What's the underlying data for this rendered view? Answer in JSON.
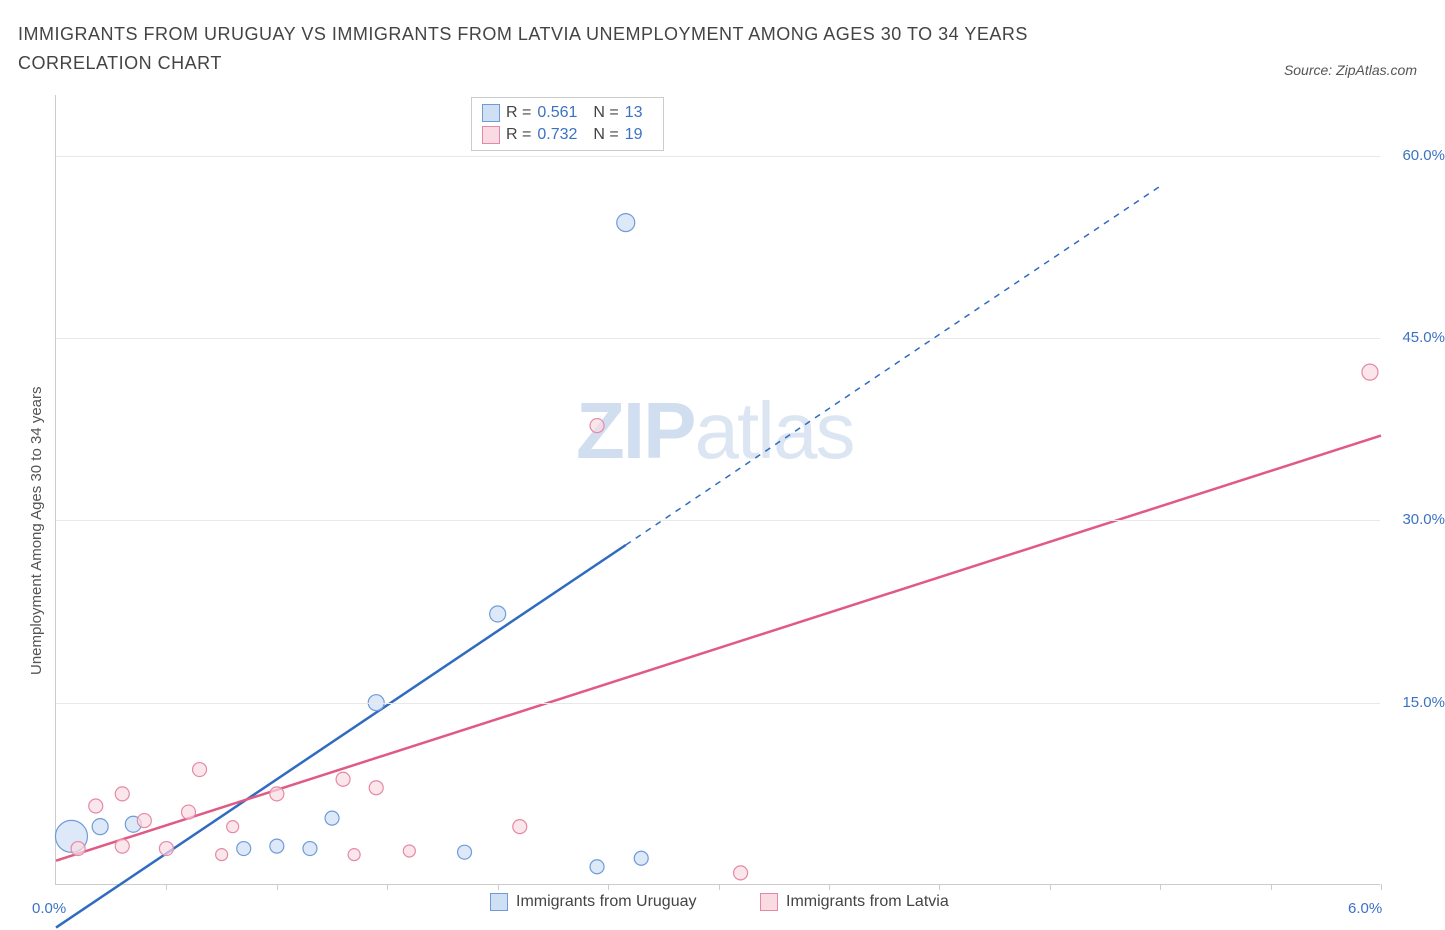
{
  "title": "IMMIGRANTS FROM URUGUAY VS IMMIGRANTS FROM LATVIA UNEMPLOYMENT AMONG AGES 30 TO 34 YEARS CORRELATION CHART",
  "source": "Source: ZipAtlas.com",
  "watermark_bold": "ZIP",
  "watermark_light": "atlas",
  "y_axis_label": "Unemployment Among Ages 30 to 34 years",
  "chart": {
    "type": "scatter-with-trend",
    "background_color": "#ffffff",
    "grid_color": "#e8e8e8",
    "axis_color": "#cccccc",
    "tick_label_color": "#3b72c4",
    "xlim": [
      0.0,
      6.0
    ],
    "ylim": [
      0.0,
      65.0
    ],
    "y_ticks": [
      15.0,
      30.0,
      45.0,
      60.0
    ],
    "y_tick_labels": [
      "15.0%",
      "30.0%",
      "45.0%",
      "60.0%"
    ],
    "x_tick_positions": [
      0.5,
      1.0,
      1.5,
      2.0,
      2.5,
      3.0,
      3.5,
      4.0,
      4.5,
      5.0,
      5.5,
      6.0
    ],
    "x_origin_label": "0.0%",
    "x_max_label": "6.0%",
    "series": [
      {
        "id": "uruguay",
        "label": "Immigrants from Uruguay",
        "color_fill": "#cfe0f5",
        "color_stroke": "#6f9bd8",
        "trend_color": "#2f6bc0",
        "trend_width": 2.5,
        "trend_solid_until_x": 2.58,
        "trend_y_intercept": -3.5,
        "trend_slope": 12.2,
        "trend_x_end": 5.0,
        "R": "0.561",
        "N": "13",
        "points": [
          {
            "x": 0.07,
            "y": 4.0,
            "r": 16
          },
          {
            "x": 0.2,
            "y": 4.8,
            "r": 8
          },
          {
            "x": 0.35,
            "y": 5.0,
            "r": 8
          },
          {
            "x": 0.85,
            "y": 3.0,
            "r": 7
          },
          {
            "x": 1.0,
            "y": 3.2,
            "r": 7
          },
          {
            "x": 1.15,
            "y": 3.0,
            "r": 7
          },
          {
            "x": 1.25,
            "y": 5.5,
            "r": 7
          },
          {
            "x": 1.45,
            "y": 15.0,
            "r": 8
          },
          {
            "x": 1.85,
            "y": 2.7,
            "r": 7
          },
          {
            "x": 2.0,
            "y": 22.3,
            "r": 8
          },
          {
            "x": 2.45,
            "y": 1.5,
            "r": 7
          },
          {
            "x": 2.65,
            "y": 2.2,
            "r": 7
          },
          {
            "x": 2.58,
            "y": 54.5,
            "r": 9
          }
        ]
      },
      {
        "id": "latvia",
        "label": "Immigrants from Latvia",
        "color_fill": "#fadbe4",
        "color_stroke": "#e589a6",
        "trend_color": "#e05a85",
        "trend_width": 2.5,
        "trend_solid_until_x": 6.0,
        "trend_y_intercept": 2.0,
        "trend_slope": 5.83,
        "trend_x_end": 6.0,
        "R": "0.732",
        "N": "19",
        "points": [
          {
            "x": 0.1,
            "y": 3.0,
            "r": 7
          },
          {
            "x": 0.18,
            "y": 6.5,
            "r": 7
          },
          {
            "x": 0.3,
            "y": 7.5,
            "r": 7
          },
          {
            "x": 0.3,
            "y": 3.2,
            "r": 7
          },
          {
            "x": 0.4,
            "y": 5.3,
            "r": 7
          },
          {
            "x": 0.5,
            "y": 3.0,
            "r": 7
          },
          {
            "x": 0.6,
            "y": 6.0,
            "r": 7
          },
          {
            "x": 0.65,
            "y": 9.5,
            "r": 7
          },
          {
            "x": 0.75,
            "y": 2.5,
            "r": 6
          },
          {
            "x": 0.8,
            "y": 4.8,
            "r": 6
          },
          {
            "x": 1.0,
            "y": 7.5,
            "r": 7
          },
          {
            "x": 1.3,
            "y": 8.7,
            "r": 7
          },
          {
            "x": 1.35,
            "y": 2.5,
            "r": 6
          },
          {
            "x": 1.45,
            "y": 8.0,
            "r": 7
          },
          {
            "x": 1.6,
            "y": 2.8,
            "r": 6
          },
          {
            "x": 2.1,
            "y": 4.8,
            "r": 7
          },
          {
            "x": 2.45,
            "y": 37.8,
            "r": 7
          },
          {
            "x": 3.1,
            "y": 1.0,
            "r": 7
          },
          {
            "x": 5.95,
            "y": 42.2,
            "r": 8
          }
        ]
      }
    ]
  },
  "legend_stats_labels": {
    "R": "R =",
    "N": "N ="
  }
}
